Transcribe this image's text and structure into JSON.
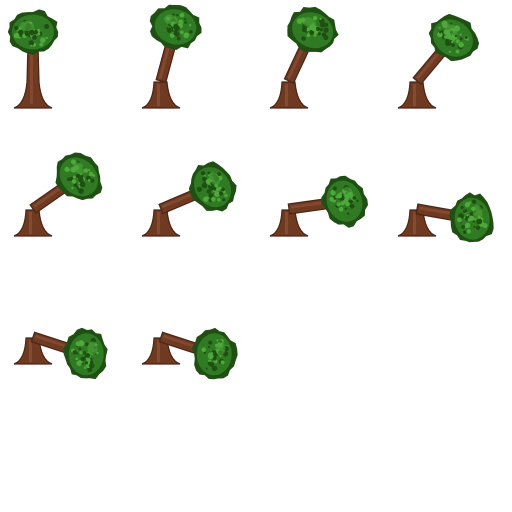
{
  "sprite_sheet": {
    "frame_count": 10,
    "frames": [
      {
        "trunk_tilt_deg": 0
      },
      {
        "trunk_tilt_deg": 15
      },
      {
        "trunk_tilt_deg": 25
      },
      {
        "trunk_tilt_deg": 40
      },
      {
        "trunk_tilt_deg": 55
      },
      {
        "trunk_tilt_deg": 67
      },
      {
        "trunk_tilt_deg": 82
      },
      {
        "trunk_tilt_deg": 100
      },
      {
        "trunk_tilt_deg": 108
      },
      {
        "trunk_tilt_deg": 108
      }
    ],
    "colors": {
      "canopy_dark": "#1f4f12",
      "canopy_mid": "#2f7a22",
      "canopy_light": "#4ea83a",
      "trunk_dark": "#4a2414",
      "trunk_mid": "#6e3a22",
      "trunk_light": "#935638",
      "stump_cut": "#b07050"
    }
  }
}
